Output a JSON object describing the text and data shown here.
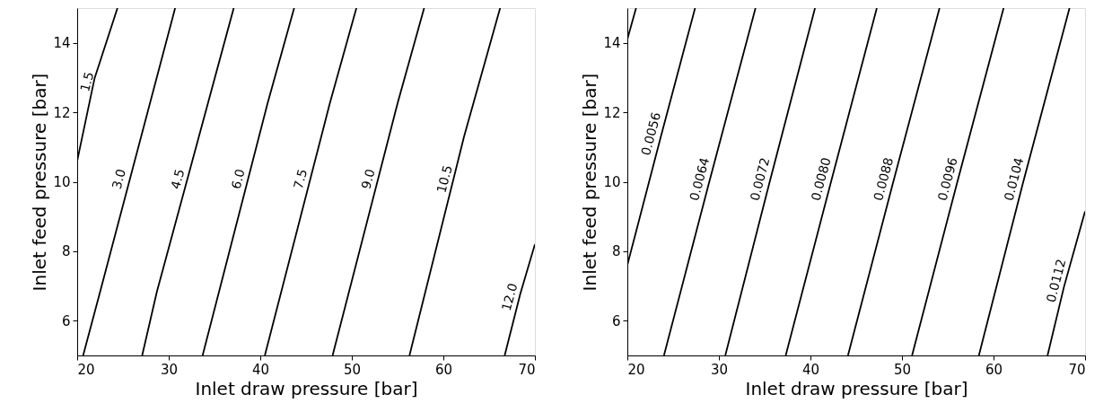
{
  "chart_data": [
    {
      "type": "line",
      "xlabel": "Inlet draw pressure [bar]",
      "ylabel": "Inlet feed pressure [bar]",
      "xlim": [
        20,
        70
      ],
      "ylim": [
        5,
        15
      ],
      "xticks": [
        20,
        30,
        40,
        50,
        60,
        70
      ],
      "yticks": [
        6,
        8,
        10,
        12,
        14
      ],
      "grid": false,
      "legend": false,
      "marker": "none",
      "line_style": "solid",
      "series": [
        {
          "name": "1.5",
          "color": "#000000",
          "x": [
            20,
            21.9,
            24.4
          ],
          "values": [
            10.6,
            12.98,
            15
          ]
        },
        {
          "name": "3.0",
          "color": "#000000",
          "x": [
            20.65,
            22.5,
            30.7
          ],
          "values": [
            5,
            6.83,
            15
          ]
        },
        {
          "name": "4.5",
          "color": "#000000",
          "x": [
            27.1,
            28.7,
            37.1
          ],
          "values": [
            5,
            6.83,
            15
          ]
        },
        {
          "name": "6.0",
          "color": "#000000",
          "x": [
            33.7,
            40.8,
            43.7
          ],
          "values": [
            5,
            12.26,
            15
          ]
        },
        {
          "name": "7.5",
          "color": "#000000",
          "x": [
            40.5,
            47.6,
            50.5
          ],
          "values": [
            5,
            12.26,
            15
          ]
        },
        {
          "name": "9.0",
          "color": "#000000",
          "x": [
            47.9,
            55.0,
            57.9
          ],
          "values": [
            5,
            12.26,
            15
          ]
        },
        {
          "name": "10.5",
          "color": "#000000",
          "x": [
            56.3,
            62.25,
            66.2
          ],
          "values": [
            5,
            11.29,
            15
          ]
        },
        {
          "name": "12.0",
          "color": "#000000",
          "x": [
            66.7,
            68.4,
            70
          ],
          "values": [
            5,
            6.77,
            8.2
          ]
        }
      ]
    },
    {
      "type": "line",
      "xlabel": "Inlet draw pressure [bar]",
      "ylabel": "Inlet feed pressure [bar]",
      "xlim": [
        20,
        70
      ],
      "ylim": [
        5,
        15
      ],
      "xticks": [
        20,
        30,
        40,
        50,
        60,
        70
      ],
      "yticks": [
        6,
        8,
        10,
        12,
        14
      ],
      "grid": false,
      "legend": false,
      "marker": "none",
      "line_style": "solid",
      "series": [
        {
          "color": "#000000",
          "x": [
            20,
            20.95
          ],
          "values": [
            14.1,
            15
          ]
        },
        {
          "name": "0.0056",
          "color": "#000000",
          "x": [
            20,
            23.6,
            27.4
          ],
          "values": [
            7.6,
            11.24,
            15
          ]
        },
        {
          "name": "0.0064",
          "color": "#000000",
          "x": [
            24.0,
            28.9,
            34.0
          ],
          "values": [
            5,
            9.95,
            15
          ]
        },
        {
          "name": "0.0072",
          "color": "#000000",
          "x": [
            30.7,
            35.5,
            40.5
          ],
          "values": [
            5,
            9.95,
            15
          ]
        },
        {
          "name": "0.0080",
          "color": "#000000",
          "x": [
            37.3,
            42.2,
            47.25
          ],
          "values": [
            5,
            9.95,
            15
          ]
        },
        {
          "name": "0.0088",
          "color": "#000000",
          "x": [
            44.1,
            49.0,
            54.1
          ],
          "values": [
            5,
            9.95,
            15
          ]
        },
        {
          "name": "0.0096",
          "color": "#000000",
          "x": [
            51.1,
            56.0,
            61.1
          ],
          "values": [
            5,
            9.95,
            15
          ]
        },
        {
          "name": "0.0104",
          "color": "#000000",
          "x": [
            58.4,
            63.2,
            68.3
          ],
          "values": [
            5,
            9.95,
            15
          ]
        },
        {
          "name": "0.0112",
          "color": "#000000",
          "x": [
            65.9,
            67.7,
            70
          ],
          "values": [
            5,
            6.98,
            9.15
          ]
        }
      ]
    }
  ]
}
